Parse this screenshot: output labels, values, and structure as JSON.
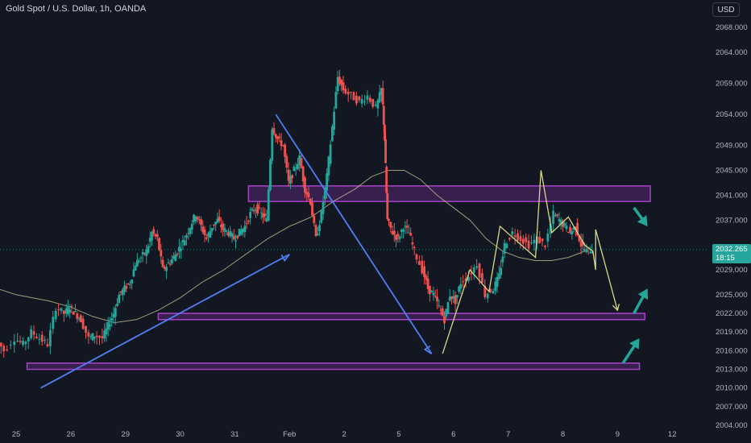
{
  "header": {
    "title": "Gold Spot / U.S. Dollar, 1h, OANDA",
    "currency": "USD"
  },
  "colors": {
    "background": "#131722",
    "up_candle": "#26a69a",
    "down_candle": "#ef5350",
    "moving_average": "#c9c998",
    "zone_border": "#a742c9",
    "zone_fill": "#7b2fa0",
    "trend_line": "#4f7ff0",
    "projection_line": "#d8d88a",
    "arrow": "#26a69a"
  },
  "price_badge": {
    "price": "2032.265",
    "countdown": "18:15"
  },
  "chart_data": {
    "type": "candlestick",
    "title": "Gold Spot / U.S. Dollar, 1h, OANDA",
    "ylim": [
      2004,
      2071
    ],
    "y_ticks": [
      "2068.000",
      "2064.000",
      "2059.000",
      "2054.000",
      "2049.000",
      "2045.000",
      "2041.000",
      "2037.000",
      "2032.000",
      "2029.000",
      "2025.000",
      "2022.000",
      "2019.000",
      "2016.000",
      "2013.000",
      "2010.000",
      "2007.000",
      "2004.000"
    ],
    "x_ticks": [
      "25",
      "26",
      "29",
      "30",
      "31",
      "Feb",
      "2",
      "5",
      "6",
      "7",
      "8",
      "9",
      "12"
    ],
    "x_tick_positions": [
      0,
      1,
      2,
      3,
      4,
      5,
      6,
      7,
      8,
      9,
      10,
      11,
      12
    ],
    "price_path": [
      [
        -0.35,
        2018.0
      ],
      [
        -0.2,
        2016.0
      ],
      [
        0.0,
        2018.0
      ],
      [
        0.15,
        2017.0
      ],
      [
        0.3,
        2019.0
      ],
      [
        0.45,
        2018.0
      ],
      [
        0.6,
        2017.0
      ],
      [
        0.75,
        2023.0
      ],
      [
        0.9,
        2022.0
      ],
      [
        1.0,
        2023.0
      ],
      [
        1.1,
        2022.0
      ],
      [
        1.2,
        2021.0
      ],
      [
        1.35,
        2018.0
      ],
      [
        1.45,
        2018.5
      ],
      [
        1.6,
        2018.0
      ],
      [
        1.7,
        2020.0
      ],
      [
        1.8,
        2022.0
      ],
      [
        1.9,
        2025.0
      ],
      [
        2.0,
        2026.0
      ],
      [
        2.1,
        2027.0
      ],
      [
        2.2,
        2030.0
      ],
      [
        2.3,
        2031.0
      ],
      [
        2.4,
        2032.0
      ],
      [
        2.5,
        2035.0
      ],
      [
        2.6,
        2034.0
      ],
      [
        2.7,
        2029.0
      ],
      [
        2.8,
        2030.0
      ],
      [
        2.9,
        2031.0
      ],
      [
        3.0,
        2032.5
      ],
      [
        3.1,
        2034.0
      ],
      [
        3.2,
        2036.0
      ],
      [
        3.3,
        2038.0
      ],
      [
        3.4,
        2036.0
      ],
      [
        3.5,
        2034.0
      ],
      [
        3.6,
        2036.0
      ],
      [
        3.7,
        2037.0
      ],
      [
        3.8,
        2035.5
      ],
      [
        3.9,
        2035.0
      ],
      [
        4.0,
        2034.0
      ],
      [
        4.1,
        2035.0
      ],
      [
        4.2,
        2036.0
      ],
      [
        4.3,
        2038.0
      ],
      [
        4.4,
        2039.0
      ],
      [
        4.5,
        2038.0
      ],
      [
        4.6,
        2037.0
      ],
      [
        4.7,
        2052.0
      ],
      [
        4.8,
        2050.0
      ],
      [
        4.9,
        2049.0
      ],
      [
        5.0,
        2043.0
      ],
      [
        5.1,
        2045.0
      ],
      [
        5.2,
        2047.0
      ],
      [
        5.3,
        2042.0
      ],
      [
        5.4,
        2040.0
      ],
      [
        5.5,
        2034.0
      ],
      [
        5.6,
        2038.0
      ],
      [
        5.7,
        2044.0
      ],
      [
        5.8,
        2052.0
      ],
      [
        5.9,
        2060.0
      ],
      [
        6.0,
        2058.0
      ],
      [
        6.15,
        2057.0
      ],
      [
        6.3,
        2056.0
      ],
      [
        6.45,
        2057.0
      ],
      [
        6.6,
        2055.0
      ],
      [
        6.7,
        2058.0
      ],
      [
        6.75,
        2050.0
      ],
      [
        6.8,
        2037.0
      ],
      [
        6.9,
        2035.0
      ],
      [
        7.0,
        2034.0
      ],
      [
        7.1,
        2036.0
      ],
      [
        7.2,
        2035.0
      ],
      [
        7.3,
        2032.0
      ],
      [
        7.45,
        2029.0
      ],
      [
        7.55,
        2026.0
      ],
      [
        7.65,
        2025.0
      ],
      [
        7.75,
        2023.0
      ],
      [
        7.85,
        2021.0
      ],
      [
        7.95,
        2025.0
      ],
      [
        8.05,
        2024.0
      ],
      [
        8.15,
        2027.0
      ],
      [
        8.3,
        2028.0
      ],
      [
        8.45,
        2030.0
      ],
      [
        8.6,
        2025.0
      ],
      [
        8.75,
        2026.0
      ],
      [
        8.85,
        2028.0
      ],
      [
        8.95,
        2033.0
      ],
      [
        9.1,
        2035.0
      ],
      [
        9.25,
        2034.0
      ],
      [
        9.4,
        2033.0
      ],
      [
        9.55,
        2034.0
      ],
      [
        9.7,
        2033.0
      ],
      [
        9.85,
        2038.0
      ],
      [
        9.95,
        2037.0
      ],
      [
        10.05,
        2036.0
      ],
      [
        10.15,
        2035.0
      ],
      [
        10.25,
        2036.0
      ],
      [
        10.35,
        2033.0
      ],
      [
        10.45,
        2032.0
      ],
      [
        10.55,
        2032.3
      ]
    ],
    "moving_average": [
      [
        -0.35,
        2026.0
      ],
      [
        0.0,
        2025.0
      ],
      [
        0.3,
        2024.5
      ],
      [
        0.6,
        2024.0
      ],
      [
        1.0,
        2023.0
      ],
      [
        1.4,
        2021.5
      ],
      [
        1.8,
        2020.5
      ],
      [
        2.2,
        2021.0
      ],
      [
        2.6,
        2022.5
      ],
      [
        3.0,
        2024.5
      ],
      [
        3.4,
        2027.0
      ],
      [
        3.8,
        2029.0
      ],
      [
        4.2,
        2031.5
      ],
      [
        4.6,
        2034.0
      ],
      [
        5.0,
        2036.0
      ],
      [
        5.4,
        2037.5
      ],
      [
        5.8,
        2040.0
      ],
      [
        6.2,
        2042.0
      ],
      [
        6.5,
        2044.0
      ],
      [
        6.8,
        2045.0
      ],
      [
        7.1,
        2045.0
      ],
      [
        7.4,
        2043.5
      ],
      [
        7.7,
        2041.0
      ],
      [
        8.0,
        2039.0
      ],
      [
        8.3,
        2037.0
      ],
      [
        8.6,
        2034.0
      ],
      [
        8.9,
        2032.0
      ],
      [
        9.2,
        2031.0
      ],
      [
        9.5,
        2030.5
      ],
      [
        9.8,
        2030.5
      ],
      [
        10.1,
        2031.0
      ],
      [
        10.4,
        2032.0
      ]
    ],
    "resistance_zone": {
      "x_start": 4.25,
      "x_end": 11.6,
      "y_low": 2040.0,
      "y_high": 2042.5
    },
    "support_zone_upper": {
      "x_start": 2.6,
      "x_end": 11.5,
      "y_low": 2021.0,
      "y_high": 2022.0
    },
    "support_zone_lower": {
      "x_start": 0.2,
      "x_end": 11.4,
      "y_low": 2013.0,
      "y_high": 2014.0
    },
    "trend_lines": [
      [
        [
          0.45,
          2010.0
        ],
        [
          5.0,
          2031.5
        ]
      ],
      [
        [
          4.75,
          2054.0
        ],
        [
          7.6,
          2015.5
        ]
      ]
    ],
    "projection_path": [
      [
        7.8,
        2015.5
      ],
      [
        8.3,
        2029.0
      ],
      [
        8.65,
        2025.5
      ],
      [
        8.85,
        2036.0
      ],
      [
        9.5,
        2031.0
      ],
      [
        9.6,
        2045.0
      ],
      [
        9.8,
        2035.0
      ],
      [
        10.1,
        2037.5
      ],
      [
        10.4,
        2033.0
      ],
      [
        10.55,
        2032.0
      ],
      [
        10.6,
        2029.0
      ],
      [
        10.6,
        2032.0
      ],
      [
        10.6,
        2035.5
      ],
      [
        11.0,
        2022.5
      ]
    ],
    "arrows": [
      {
        "from": [
          11.3,
          2039.0
        ],
        "to": [
          11.55,
          2036.0
        ]
      },
      {
        "from": [
          11.3,
          2022.0
        ],
        "to": [
          11.55,
          2026.0
        ]
      },
      {
        "from": [
          11.1,
          2014.0
        ],
        "to": [
          11.4,
          2018.0
        ]
      }
    ]
  }
}
